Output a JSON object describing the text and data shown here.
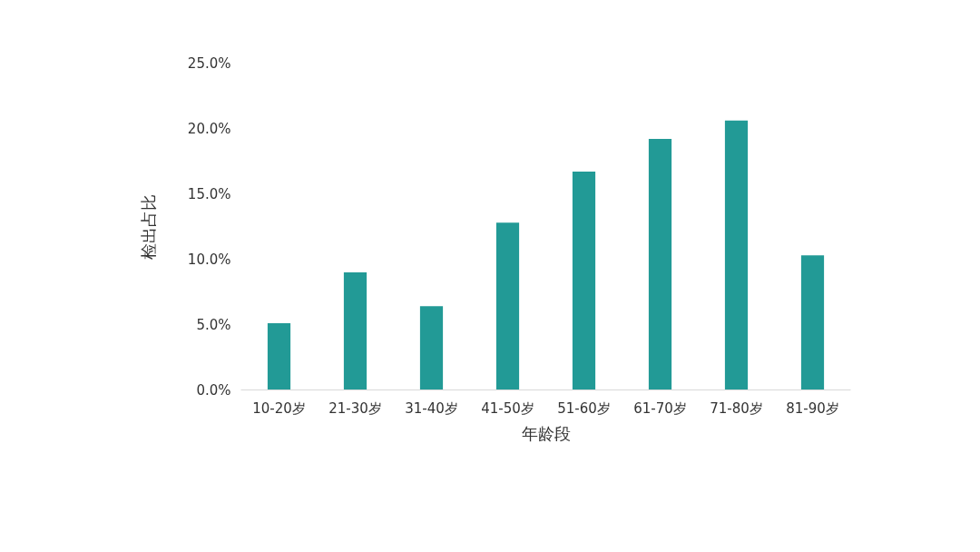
{
  "chart_data": {
    "type": "bar",
    "xlabel": "年龄段",
    "ylabel": "检出占比",
    "categories": [
      "10-20岁",
      "21-30岁",
      "31-40岁",
      "41-50岁",
      "51-60岁",
      "61-70岁",
      "71-80岁",
      "81-90岁"
    ],
    "values": [
      5.1,
      9.0,
      6.4,
      12.8,
      16.7,
      19.2,
      20.6,
      10.3
    ],
    "color": "#229a96",
    "ylim": [
      0,
      25
    ],
    "yticks": [
      {
        "value": 0,
        "label": "0.0%"
      },
      {
        "value": 5,
        "label": "5.0%"
      },
      {
        "value": 10,
        "label": "10.0%"
      },
      {
        "value": 15,
        "label": "15.0%"
      },
      {
        "value": 20,
        "label": "20.0%"
      },
      {
        "value": 25,
        "label": "25.0%"
      }
    ],
    "grid": false
  }
}
